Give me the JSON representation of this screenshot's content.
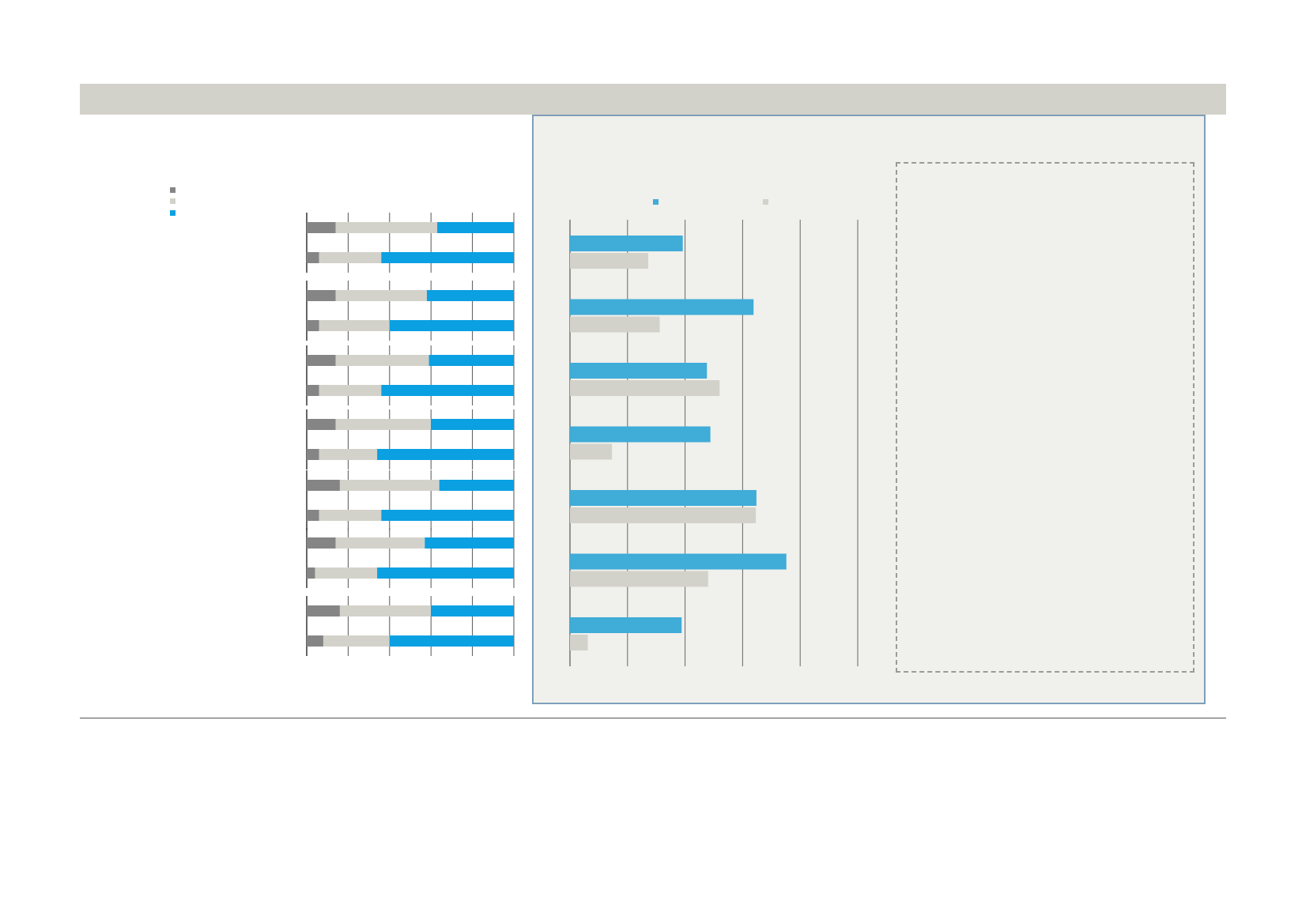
{
  "colors": {
    "dark_gray": "#858585",
    "light_gray": "#d3d2ca",
    "blue": "#0aa0e2",
    "blue_light": "#40acd8",
    "panel_bg": "#f0f0ec",
    "panel_border": "#7f9fba"
  },
  "legend_left": [
    {
      "label": "",
      "color": "#858585"
    },
    {
      "label": "",
      "color": "#d3d2ca"
    },
    {
      "label": "",
      "color": "#0aa0e2"
    }
  ],
  "legend_right": [
    {
      "label": "",
      "color": "#40acd8"
    },
    {
      "label": "",
      "color": "#d3d2ca"
    }
  ],
  "chart_data": [
    {
      "type": "bar",
      "orientation": "horizontal",
      "stacked": true,
      "unit": "percent",
      "xlim": [
        0,
        100
      ],
      "grid": true,
      "legend": "top-left",
      "groups": [
        {
          "rows": [
            [
              14,
              49,
              37
            ],
            [
              6,
              30,
              64
            ]
          ]
        },
        {
          "rows": [
            [
              14,
              44,
              42
            ],
            [
              6,
              34,
              60
            ]
          ]
        },
        {
          "rows": [
            [
              14,
              45,
              41
            ],
            [
              6,
              30,
              64
            ]
          ]
        },
        {
          "rows": [
            [
              14,
              46,
              40
            ],
            [
              6,
              28,
              66
            ]
          ]
        },
        {
          "rows": [
            [
              16,
              48,
              36
            ],
            [
              6,
              30,
              64
            ]
          ]
        },
        {
          "rows": [
            [
              14,
              43,
              43
            ],
            [
              4,
              30,
              66
            ]
          ]
        },
        {
          "rows": [
            [
              16,
              44,
              40
            ],
            [
              8,
              32,
              60
            ]
          ]
        }
      ],
      "series": [
        {
          "name": "",
          "color": "#858585"
        },
        {
          "name": "",
          "color": "#d3d2ca"
        },
        {
          "name": "",
          "color": "#0aa0e2"
        }
      ]
    },
    {
      "type": "bar",
      "orientation": "horizontal",
      "xlim": [
        0,
        50
      ],
      "grid": true,
      "legend": "top",
      "categories": [
        "",
        "",
        "",
        "",
        "",
        "",
        ""
      ],
      "series": [
        {
          "name": "",
          "color": "#40acd8",
          "values": [
            19.6,
            31.9,
            23.8,
            24.4,
            32.4,
            37.6,
            19.4
          ]
        },
        {
          "name": "",
          "color": "#d3d2ca",
          "values": [
            13.6,
            15.6,
            26.0,
            7.3,
            32.3,
            24.0,
            3.1
          ]
        }
      ]
    }
  ]
}
